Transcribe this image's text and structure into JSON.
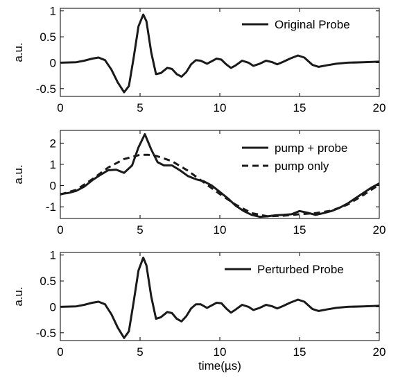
{
  "chart_data": [
    {
      "type": "line",
      "ylabel": "a.u.",
      "xlabel": "",
      "xlim": [
        0,
        20
      ],
      "ylim": [
        -0.65,
        1.05
      ],
      "xticks": [
        0,
        5,
        10,
        15,
        20
      ],
      "yticks": [
        -0.5,
        0,
        0.5,
        1
      ],
      "ytick_labels": [
        "-0.5",
        "0",
        "0.5",
        "1"
      ],
      "grid": false,
      "legend_position": "top-right",
      "series": [
        {
          "name": "Original Probe",
          "style": "solid",
          "x": [
            0,
            1,
            1.5,
            2,
            2.4,
            2.8,
            3.2,
            3.6,
            4.0,
            4.3,
            4.6,
            4.9,
            5.2,
            5.4,
            5.7,
            6.0,
            6.3,
            6.7,
            7.0,
            7.3,
            7.6,
            7.9,
            8.2,
            8.5,
            8.8,
            9.2,
            9.5,
            9.8,
            10.1,
            10.4,
            10.7,
            11.0,
            11.4,
            11.8,
            12.1,
            12.5,
            12.9,
            13.3,
            13.6,
            14.0,
            14.4,
            14.9,
            15.3,
            15.8,
            16.2,
            16.7,
            17.3,
            18.0,
            19.0,
            20.0
          ],
          "y": [
            0,
            0.01,
            0.04,
            0.08,
            0.1,
            0.05,
            -0.13,
            -0.38,
            -0.57,
            -0.45,
            0.1,
            0.7,
            0.93,
            0.8,
            0.2,
            -0.22,
            -0.2,
            -0.1,
            -0.12,
            -0.22,
            -0.27,
            -0.18,
            -0.03,
            0.05,
            0.04,
            -0.02,
            0.03,
            0.08,
            0.06,
            -0.03,
            -0.1,
            -0.05,
            0.04,
            0.0,
            -0.06,
            -0.02,
            0.04,
            0.01,
            -0.03,
            0.02,
            0.08,
            0.14,
            0.1,
            -0.04,
            -0.08,
            -0.05,
            -0.02,
            0.0,
            0.01,
            0.02
          ]
        }
      ]
    },
    {
      "type": "line",
      "ylabel": "a.u.",
      "xlabel": "",
      "xlim": [
        0,
        20
      ],
      "ylim": [
        -1.55,
        2.6
      ],
      "xticks": [
        0,
        5,
        10,
        15,
        20
      ],
      "yticks": [
        -1,
        0,
        1,
        2
      ],
      "ytick_labels": [
        "-1",
        "0",
        "1",
        "2"
      ],
      "grid": false,
      "legend_position": "top-right",
      "series": [
        {
          "name": "pump + probe",
          "style": "solid",
          "x": [
            0,
            0.5,
            1,
            1.5,
            2,
            2.5,
            3,
            3.5,
            4,
            4.5,
            4.9,
            5.3,
            5.7,
            6.1,
            6.5,
            7,
            7.5,
            8,
            8.5,
            9,
            9.5,
            10,
            10.5,
            11,
            11.5,
            12,
            12.5,
            13,
            13.5,
            14,
            14.5,
            15,
            15.5,
            16,
            16.5,
            17,
            17.5,
            18,
            18.5,
            19,
            19.5,
            20
          ],
          "y": [
            -0.4,
            -0.35,
            -0.25,
            -0.05,
            0.25,
            0.5,
            0.72,
            0.75,
            0.6,
            0.95,
            1.8,
            2.42,
            1.7,
            1.1,
            0.95,
            0.95,
            0.72,
            0.45,
            0.3,
            0.2,
            0.0,
            -0.3,
            -0.6,
            -0.95,
            -1.2,
            -1.38,
            -1.47,
            -1.45,
            -1.4,
            -1.38,
            -1.35,
            -1.2,
            -1.28,
            -1.38,
            -1.3,
            -1.2,
            -1.05,
            -0.85,
            -0.6,
            -0.35,
            -0.1,
            0.1
          ]
        },
        {
          "name": "pump only",
          "style": "dashed",
          "x": [
            0,
            1,
            2,
            3,
            4,
            5,
            5.5,
            6,
            7,
            8,
            9,
            10,
            11,
            12,
            13,
            14,
            15,
            16,
            17,
            18,
            19,
            20
          ],
          "y": [
            -0.42,
            -0.2,
            0.3,
            0.85,
            1.25,
            1.45,
            1.45,
            1.4,
            1.15,
            0.7,
            0.15,
            -0.4,
            -0.9,
            -1.3,
            -1.45,
            -1.42,
            -1.35,
            -1.3,
            -1.18,
            -0.9,
            -0.45,
            0.05
          ]
        }
      ]
    },
    {
      "type": "line",
      "ylabel": "a.u.",
      "xlabel": "time(µs)",
      "xlim": [
        0,
        20
      ],
      "ylim": [
        -0.65,
        1.05
      ],
      "xticks": [
        0,
        5,
        10,
        15,
        20
      ],
      "yticks": [
        -0.5,
        0,
        0.5,
        1
      ],
      "ytick_labels": [
        "-0.5",
        "0",
        "0.5",
        "1"
      ],
      "grid": false,
      "legend_position": "top-right",
      "series": [
        {
          "name": "Perturbed Probe",
          "style": "solid",
          "x": [
            0,
            1,
            1.5,
            2,
            2.4,
            2.8,
            3.2,
            3.6,
            4.0,
            4.3,
            4.6,
            4.9,
            5.2,
            5.4,
            5.7,
            6.0,
            6.3,
            6.7,
            7.0,
            7.3,
            7.6,
            7.9,
            8.2,
            8.5,
            8.8,
            9.2,
            9.5,
            9.8,
            10.1,
            10.4,
            10.7,
            11.0,
            11.4,
            11.8,
            12.1,
            12.5,
            12.9,
            13.3,
            13.6,
            14.0,
            14.4,
            14.9,
            15.3,
            15.8,
            16.2,
            16.7,
            17.3,
            18.0,
            19.0,
            20.0
          ],
          "y": [
            0,
            0.01,
            0.04,
            0.08,
            0.1,
            0.05,
            -0.14,
            -0.4,
            -0.6,
            -0.47,
            0.1,
            0.7,
            0.95,
            0.8,
            0.2,
            -0.23,
            -0.2,
            -0.1,
            -0.12,
            -0.23,
            -0.28,
            -0.18,
            -0.03,
            0.05,
            0.05,
            -0.02,
            0.03,
            0.08,
            0.07,
            -0.03,
            -0.11,
            -0.05,
            0.04,
            0.0,
            -0.06,
            -0.02,
            0.04,
            0.01,
            -0.03,
            0.02,
            0.08,
            0.14,
            0.1,
            -0.04,
            -0.08,
            -0.05,
            -0.02,
            0.0,
            0.01,
            0.02
          ]
        }
      ]
    }
  ]
}
